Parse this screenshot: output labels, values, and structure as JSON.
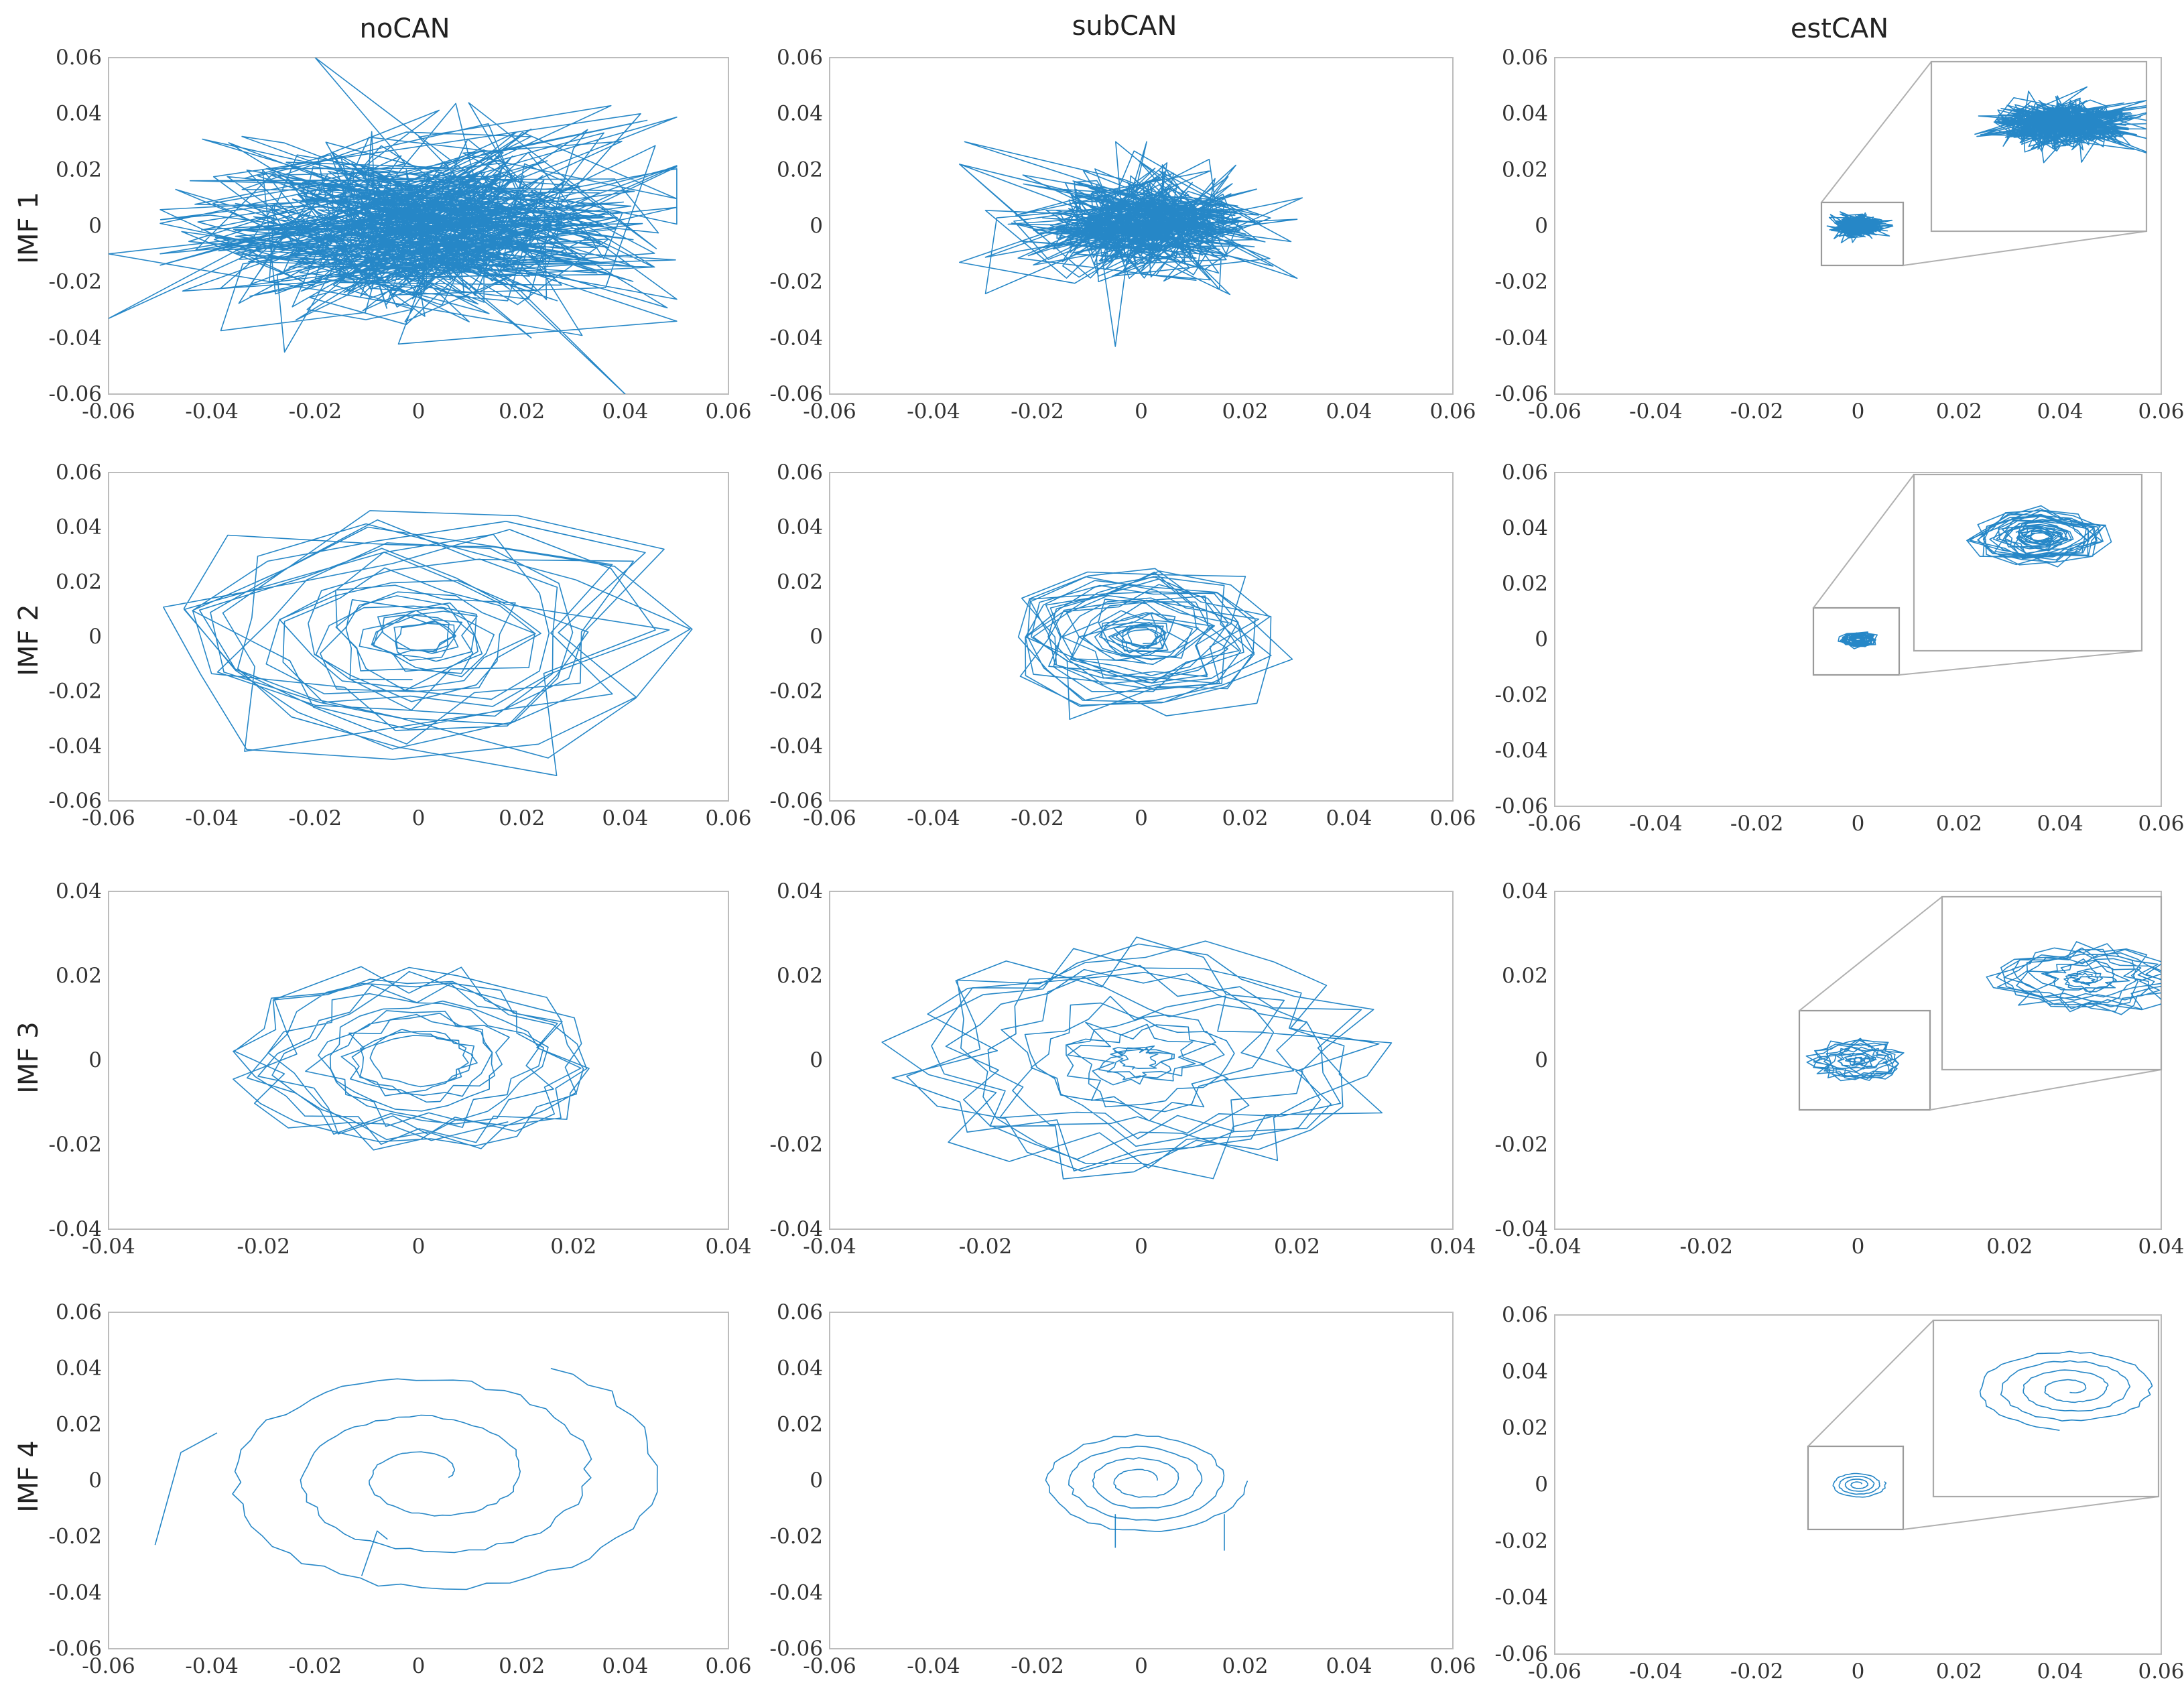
{
  "figure": {
    "column_titles": [
      "noCAN",
      "subCAN",
      "estCAN"
    ],
    "row_titles": [
      "IMF 1",
      "IMF 2",
      "IMF 3",
      "IMF 4"
    ],
    "line_color": "#0072BD"
  },
  "chart_data": [
    {
      "id": "imf1-nocan",
      "type": "line",
      "title": "noCAN",
      "ylabel": "IMF 1",
      "xlim": [
        -0.06,
        0.06
      ],
      "ylim": [
        -0.06,
        0.06
      ],
      "xticks": [
        -0.06,
        -0.04,
        -0.02,
        0,
        0.02,
        0.04,
        0.06
      ],
      "yticks": [
        -0.06,
        -0.04,
        -0.02,
        0,
        0.02,
        0.04,
        0.06
      ],
      "xtick_labels": [
        "-0.06",
        "-0.04",
        "-0.02",
        "0",
        "0.02",
        "0.04",
        "0.06"
      ],
      "ytick_labels": [
        "-0.06",
        "-0.04",
        "-0.02",
        "0",
        "0.02",
        "0.04",
        "0.06"
      ],
      "pattern": "scatter-cloud",
      "center": [
        0,
        0
      ],
      "spread": [
        0.022,
        0.016
      ],
      "extent": [
        0.05,
        0.045
      ],
      "points": 600,
      "outliers": [
        [
          -0.06,
          -0.033
        ],
        [
          -0.06,
          -0.01
        ],
        [
          -0.047,
          0.013
        ],
        [
          -0.02,
          0.06
        ],
        [
          0.04,
          -0.06
        ],
        [
          0.05,
          -0.034
        ],
        [
          0.043,
          0.04
        ]
      ]
    },
    {
      "id": "imf1-subcan",
      "type": "line",
      "title": "subCAN",
      "ylabel": "IMF 1",
      "xlim": [
        -0.06,
        0.06
      ],
      "ylim": [
        -0.06,
        0.06
      ],
      "xticks": [
        -0.06,
        -0.04,
        -0.02,
        0,
        0.02,
        0.04,
        0.06
      ],
      "yticks": [
        -0.06,
        -0.04,
        -0.02,
        0,
        0.02,
        0.04,
        0.06
      ],
      "xtick_labels": [
        "-0.06",
        "-0.04",
        "-0.02",
        "0",
        "0.02",
        "0.04",
        "0.06"
      ],
      "ytick_labels": [
        "-0.06",
        "-0.04",
        "-0.02",
        "0",
        "0.02",
        "0.04",
        "0.06"
      ],
      "pattern": "scatter-cloud",
      "center": [
        0,
        0
      ],
      "spread": [
        0.011,
        0.009
      ],
      "extent": [
        0.03,
        0.03
      ],
      "points": 500,
      "outliers": [
        [
          -0.035,
          0.022
        ],
        [
          -0.035,
          -0.013
        ],
        [
          -0.034,
          0.03
        ],
        [
          0.031,
          0.01
        ],
        [
          -0.005,
          -0.043
        ]
      ]
    },
    {
      "id": "imf1-estcan",
      "type": "line",
      "title": "estCAN",
      "ylabel": "IMF 1",
      "xlim": [
        -0.06,
        0.06
      ],
      "ylim": [
        -0.06,
        0.06
      ],
      "xticks": [
        -0.06,
        -0.04,
        -0.02,
        0,
        0.02,
        0.04,
        0.06
      ],
      "yticks": [
        -0.06,
        -0.04,
        -0.02,
        0,
        0.02,
        0.04,
        0.06
      ],
      "xtick_labels": [
        "-0.06",
        "-0.04",
        "-0.02",
        "0",
        "0.02",
        "0.04",
        "0.06"
      ],
      "ytick_labels": [
        "-0.06",
        "-0.04",
        "-0.02",
        "0",
        "0.02",
        "0.04",
        "0.06"
      ],
      "pattern": "scatter-cloud",
      "center": [
        0,
        0
      ],
      "spread": [
        0.0022,
        0.0018
      ],
      "extent": [
        0.0075,
        0.006
      ],
      "points": 500,
      "outliers": [],
      "inset": {
        "zoom_x": [
          -0.0075,
          0.0075
        ],
        "zoom_y": [
          -0.012,
          0.012
        ],
        "cloud_center": [
          0.0018,
          0.0032
        ],
        "cloud_spread": [
          0.0024,
          0.0017
        ],
        "cloud_extent": [
          0.0068,
          0.0055
        ]
      }
    },
    {
      "id": "imf2-nocan",
      "type": "line",
      "title": "noCAN",
      "ylabel": "IMF 2",
      "xlim": [
        -0.06,
        0.06
      ],
      "ylim": [
        -0.06,
        0.06
      ],
      "xticks": [
        -0.06,
        -0.04,
        -0.02,
        0,
        0.02,
        0.04,
        0.06
      ],
      "yticks": [
        -0.06,
        -0.04,
        -0.02,
        0,
        0.02,
        0.04,
        0.06
      ],
      "xtick_labels": [
        "-0.06",
        "-0.04",
        "-0.02",
        "0",
        "0.02",
        "0.04",
        "0.06"
      ],
      "ytick_labels": [
        "-0.06",
        "-0.04",
        "-0.02",
        "0",
        "0.02",
        "0.04",
        "0.06"
      ],
      "pattern": "spiral",
      "center": [
        0,
        0
      ],
      "radius": [
        0.005,
        0.054
      ],
      "aspect": 0.95,
      "turns": 26,
      "samples_per_turn": 11,
      "jitter": 0.18
    },
    {
      "id": "imf2-subcan",
      "type": "line",
      "title": "subCAN",
      "ylabel": "IMF 2",
      "xlim": [
        -0.06,
        0.06
      ],
      "ylim": [
        -0.06,
        0.06
      ],
      "xticks": [
        -0.06,
        -0.04,
        -0.02,
        0,
        0.02,
        0.04,
        0.06
      ],
      "yticks": [
        -0.06,
        -0.04,
        -0.02,
        0,
        0.02,
        0.04,
        0.06
      ],
      "xtick_labels": [
        "-0.06",
        "-0.04",
        "-0.02",
        "0",
        "0.02",
        "0.04",
        "0.06"
      ],
      "ytick_labels": [
        "-0.06",
        "-0.04",
        "-0.02",
        "0",
        "0.02",
        "0.04",
        "0.06"
      ],
      "pattern": "spiral",
      "center": [
        0,
        0
      ],
      "radius": [
        0.003,
        0.03
      ],
      "aspect": 0.98,
      "turns": 30,
      "samples_per_turn": 11,
      "jitter": 0.16
    },
    {
      "id": "imf2-estcan",
      "type": "line",
      "title": "estCAN",
      "ylabel": "IMF 2",
      "xlim": [
        -0.06,
        0.06
      ],
      "ylim": [
        -0.06,
        0.06
      ],
      "xticks": [
        -0.06,
        -0.04,
        -0.02,
        0,
        0.02,
        0.04,
        0.06
      ],
      "yticks": [
        -0.06,
        -0.04,
        -0.02,
        0,
        0.02,
        0.04,
        0.06
      ],
      "xtick_labels": [
        "-0.06",
        "-0.04",
        "-0.02",
        "0",
        "0.02",
        "0.04",
        "0.06"
      ],
      "ytick_labels": [
        "-0.06",
        "-0.04",
        "-0.02",
        "0",
        "0.02",
        "0.04",
        "0.06"
      ],
      "pattern": "spiral",
      "center": [
        0,
        0
      ],
      "radius": [
        0.0005,
        0.0042
      ],
      "aspect": 0.75,
      "turns": 30,
      "samples_per_turn": 11,
      "jitter": 0.16,
      "inset": {
        "zoom_x": [
          -0.0085,
          0.0085
        ],
        "zoom_y": [
          -0.014,
          0.01
        ],
        "spiral_center": [
          0.0009,
          0.0015
        ],
        "spiral_radius": [
          0.0007,
          0.0055
        ]
      }
    },
    {
      "id": "imf3-nocan",
      "type": "line",
      "title": "noCAN",
      "ylabel": "IMF 3",
      "xlim": [
        -0.04,
        0.04
      ],
      "ylim": [
        -0.04,
        0.04
      ],
      "xticks": [
        -0.04,
        -0.02,
        0,
        0.02,
        0.04
      ],
      "yticks": [
        -0.04,
        -0.02,
        0,
        0.02,
        0.04
      ],
      "xtick_labels": [
        "-0.04",
        "-0.02",
        "0",
        "0.02",
        "0.04"
      ],
      "ytick_labels": [
        "-0.04",
        "-0.02",
        "0",
        "0.02",
        "0.04"
      ],
      "pattern": "rings",
      "center": [
        0,
        0
      ],
      "radius": [
        0.006,
        0.025
      ],
      "aspect": 0.96,
      "turns": 14,
      "samples_per_turn": 22,
      "jitter": 0.06
    },
    {
      "id": "imf3-subcan",
      "type": "line",
      "title": "subCAN",
      "ylabel": "IMF 3",
      "xlim": [
        -0.04,
        0.04
      ],
      "ylim": [
        -0.04,
        0.04
      ],
      "xticks": [
        -0.04,
        -0.02,
        0,
        0.02,
        0.04
      ],
      "yticks": [
        -0.04,
        -0.02,
        0,
        0.02,
        0.04
      ],
      "xtick_labels": [
        "-0.04",
        "-0.02",
        "0",
        "0.02",
        "0.04"
      ],
      "ytick_labels": [
        "-0.04",
        "-0.02",
        "0",
        "0.02",
        "0.04"
      ],
      "pattern": "rings",
      "center": [
        0,
        0
      ],
      "radius": [
        0.002,
        0.034
      ],
      "aspect": 0.9,
      "turns": 16,
      "samples_per_turn": 22,
      "jitter": 0.06
    },
    {
      "id": "imf3-estcan",
      "type": "line",
      "title": "estCAN",
      "ylabel": "IMF 3",
      "xlim": [
        -0.04,
        0.04
      ],
      "ylim": [
        -0.04,
        0.04
      ],
      "xticks": [
        -0.04,
        -0.02,
        0,
        0.02,
        0.04
      ],
      "yticks": [
        -0.04,
        -0.02,
        0,
        0.02,
        0.04
      ],
      "xtick_labels": [
        "-0.04",
        "-0.02",
        "0",
        "0.02",
        "0.04"
      ],
      "ytick_labels": [
        "-0.04",
        "-0.02",
        "0",
        "0.02",
        "0.04"
      ],
      "pattern": "rings",
      "center": [
        0,
        0
      ],
      "radius": [
        0.0005,
        0.007
      ],
      "aspect": 0.75,
      "turns": 14,
      "samples_per_turn": 22,
      "jitter": 0.06,
      "inset": {
        "zoom_x": [
          -0.008,
          0.008
        ],
        "zoom_y": [
          -0.011,
          0.013
        ],
        "rings_center": [
          0.0025,
          0.0015
        ],
        "rings_radius": [
          0.0005,
          0.0072
        ]
      }
    },
    {
      "id": "imf4-nocan",
      "type": "line",
      "title": "noCAN",
      "ylabel": "IMF 4",
      "xlim": [
        -0.06,
        0.06
      ],
      "ylim": [
        -0.06,
        0.06
      ],
      "xticks": [
        -0.06,
        -0.04,
        -0.02,
        0,
        0.02,
        0.04,
        0.06
      ],
      "yticks": [
        -0.06,
        -0.04,
        -0.02,
        0,
        0.02,
        0.04,
        0.06
      ],
      "xtick_labels": [
        "-0.06",
        "-0.04",
        "-0.02",
        "0",
        "0.02",
        "0.04",
        "0.06"
      ],
      "ytick_labels": [
        "-0.06",
        "-0.04",
        "-0.02",
        "0",
        "0.02",
        "0.04",
        "0.06"
      ],
      "pattern": "open-spiral",
      "center": [
        0.002,
        0.002
      ],
      "radius": [
        0.004,
        0.046
      ],
      "aspect": 1.0,
      "turns": 3.2,
      "samples_per_turn": 60,
      "jitter": 0.03,
      "tails": [
        [
          [
            -0.051,
            -0.023
          ],
          [
            -0.046,
            0.01
          ],
          [
            -0.039,
            0.017
          ]
        ],
        [
          [
            -0.011,
            -0.034
          ],
          [
            -0.008,
            -0.018
          ],
          [
            -0.006,
            -0.021
          ]
        ]
      ]
    },
    {
      "id": "imf4-subcan",
      "type": "line",
      "title": "subCAN",
      "ylabel": "IMF 4",
      "xlim": [
        -0.06,
        0.06
      ],
      "ylim": [
        -0.06,
        0.06
      ],
      "xticks": [
        -0.06,
        -0.04,
        -0.02,
        0,
        0.02,
        0.04,
        0.06
      ],
      "yticks": [
        -0.06,
        -0.04,
        -0.02,
        0,
        0.02,
        0.04,
        0.06
      ],
      "xtick_labels": [
        "-0.06",
        "-0.04",
        "-0.02",
        "0",
        "0.02",
        "0.04",
        "0.06"
      ],
      "ytick_labels": [
        "-0.06",
        "-0.04",
        "-0.02",
        "0",
        "0.02",
        "0.04",
        "0.06"
      ],
      "pattern": "open-spiral",
      "center": [
        0,
        0
      ],
      "radius": [
        0.003,
        0.02
      ],
      "aspect": 0.95,
      "turns": 4,
      "samples_per_turn": 50,
      "jitter": 0.03,
      "tails": [
        [
          [
            -0.005,
            -0.012
          ],
          [
            -0.005,
            -0.024
          ]
        ],
        [
          [
            0.016,
            -0.012
          ],
          [
            0.016,
            -0.025
          ]
        ]
      ]
    },
    {
      "id": "imf4-estcan",
      "type": "line",
      "title": "estCAN",
      "ylabel": "IMF 4",
      "xlim": [
        -0.06,
        0.06
      ],
      "ylim": [
        -0.06,
        0.06
      ],
      "xticks": [
        -0.06,
        -0.04,
        -0.02,
        0,
        0.02,
        0.04,
        0.06
      ],
      "yticks": [
        -0.06,
        -0.04,
        -0.02,
        0,
        0.02,
        0.04,
        0.06
      ],
      "xtick_labels": [
        "-0.06",
        "-0.04",
        "-0.02",
        "0",
        "0.02",
        "0.04",
        "0.06"
      ],
      "ytick_labels": [
        "-0.06",
        "-0.04",
        "-0.02",
        "0",
        "0.02",
        "0.04",
        "0.06"
      ],
      "pattern": "open-spiral",
      "center": [
        0,
        0
      ],
      "radius": [
        0.0008,
        0.0055
      ],
      "aspect": 0.85,
      "turns": 4,
      "samples_per_turn": 50,
      "jitter": 0.03,
      "tails": [],
      "inset": {
        "zoom_x": [
          -0.01,
          0.01
        ],
        "zoom_y": [
          -0.016,
          0.015
        ],
        "spiral_center": [
          0.0022,
          0.003
        ],
        "spiral_radius": [
          0.0008,
          0.0085
        ]
      }
    }
  ]
}
